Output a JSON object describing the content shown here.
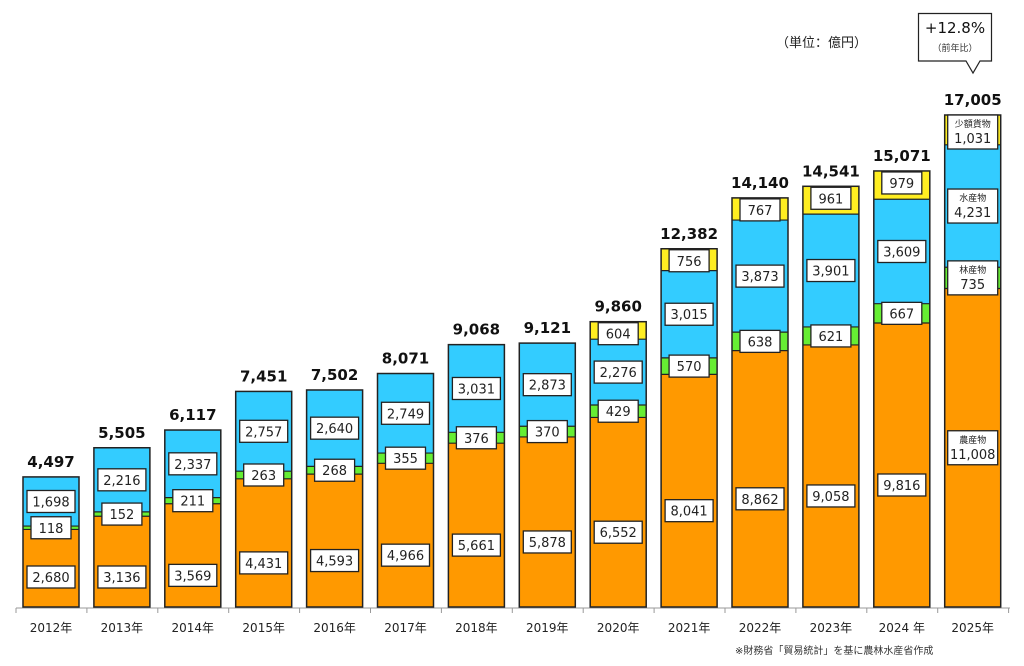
{
  "chart_data": {
    "type": "bar",
    "stacked": true,
    "title": "",
    "unit_label": "（単位：億円）",
    "xlabel": "",
    "ylabel": "",
    "ylim": [
      0,
      17005
    ],
    "grid": false,
    "categories": [
      "2012年",
      "2013年",
      "2014年",
      "2015年",
      "2016年",
      "2017年",
      "2018年",
      "2019年",
      "2020年",
      "2021年",
      "2022年",
      "2023年",
      "2024 年",
      "2025年"
    ],
    "series": [
      {
        "name": "農産物",
        "color": "#FF9900",
        "values": [
          2680,
          3136,
          3569,
          4431,
          4593,
          4966,
          5661,
          5878,
          6552,
          8041,
          8862,
          9058,
          9816,
          11008
        ],
        "labels": [
          "2,680",
          "3,136",
          "3,569",
          "4,431",
          "4,593",
          "4,966",
          "5,661",
          "5,878",
          "6,552",
          "8,041",
          "8,862",
          "9,058",
          "9,816",
          "11,008"
        ]
      },
      {
        "name": "林産物",
        "color": "#66EE33",
        "values": [
          118,
          152,
          211,
          263,
          268,
          355,
          376,
          370,
          429,
          570,
          638,
          621,
          667,
          735
        ],
        "labels": [
          "118",
          "152",
          "211",
          "263",
          "268",
          "355",
          "376",
          "370",
          "429",
          "570",
          "638",
          "621",
          "667",
          "735"
        ]
      },
      {
        "name": "水産物",
        "color": "#33CCFF",
        "values": [
          1698,
          2216,
          2337,
          2757,
          2640,
          2749,
          3031,
          2873,
          2276,
          3015,
          3873,
          3901,
          3609,
          4231
        ],
        "labels": [
          "1,698",
          "2,216",
          "2,337",
          "2,757",
          "2,640",
          "2,749",
          "3,031",
          "2,873",
          "2,276",
          "3,015",
          "3,873",
          "3,901",
          "3,609",
          "4,231"
        ]
      },
      {
        "name": "少額貨物",
        "color": "#FFEE22",
        "values": [
          0,
          0,
          0,
          0,
          0,
          0,
          0,
          0,
          604,
          756,
          767,
          961,
          979,
          1031
        ],
        "labels": [
          "",
          "",
          "",
          "",
          "",
          "",
          "",
          "",
          "604",
          "756",
          "767",
          "961",
          "979",
          "1,031"
        ]
      }
    ],
    "totals": [
      4497,
      5505,
      6117,
      7451,
      7502,
      8071,
      9068,
      9121,
      9860,
      12382,
      14140,
      14541,
      15071,
      17005
    ],
    "total_labels": [
      "4,497",
      "5,505",
      "6,117",
      "7,451",
      "7,502",
      "8,071",
      "9,068",
      "9,121",
      "9,860",
      "12,382",
      "14,140",
      "14,541",
      "15,071",
      "17,005"
    ],
    "last_bar_series_names": [
      "農産物",
      "林産物",
      "水産物",
      "少額貨物"
    ],
    "annotation": {
      "value": "+12.8%",
      "sub": "（前年比）"
    },
    "source_note": "※財務省「貿易統計」を基に農林水産省作成"
  }
}
